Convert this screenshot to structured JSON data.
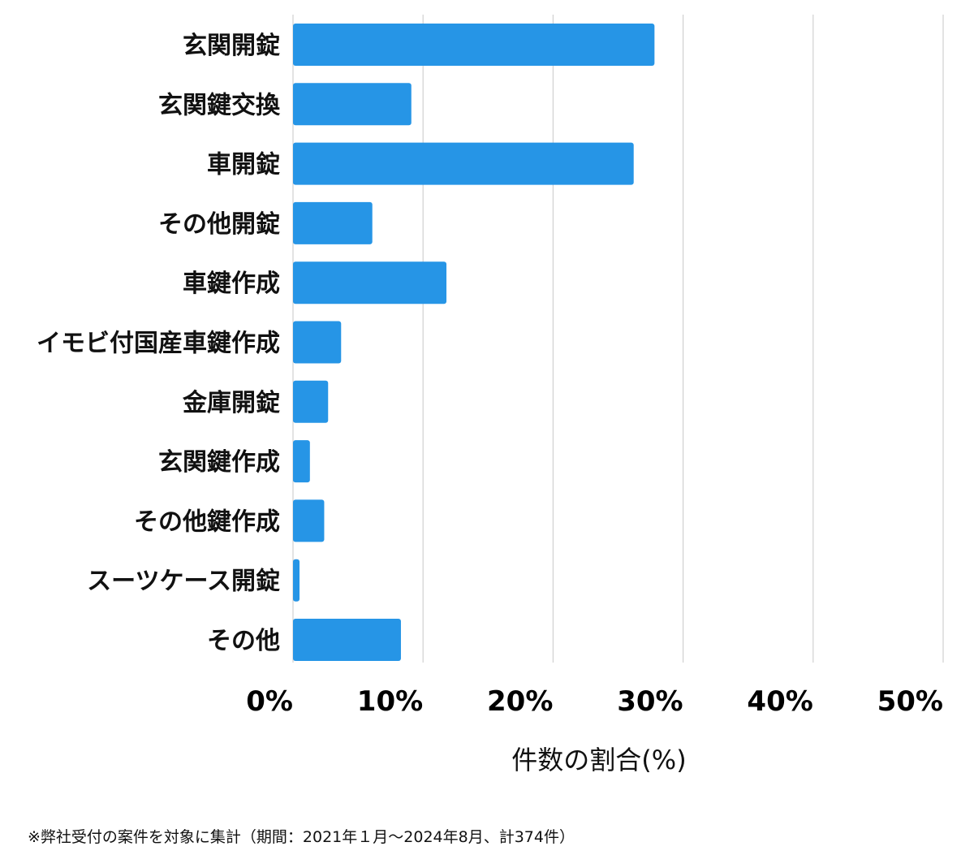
{
  "chart_data": {
    "type": "bar",
    "orientation": "horizontal",
    "categories": [
      "玄関開錠",
      "玄関鍵交換",
      "車開錠",
      "その他開錠",
      "車鍵作成",
      "イモビ付国産車鍵作成",
      "金庫開錠",
      "玄関鍵作成",
      "その他鍵作成",
      "スーツケース開錠",
      "その他"
    ],
    "values": [
      27.8,
      9.1,
      26.2,
      6.1,
      11.8,
      3.7,
      2.7,
      1.3,
      2.4,
      0.5,
      8.3
    ],
    "xlim": [
      0,
      50
    ],
    "xticks": [
      0,
      10,
      20,
      30,
      40,
      50
    ],
    "xtick_labels": [
      "0%",
      "10%",
      "20%",
      "30%",
      "40%",
      "50%"
    ],
    "xlabel": "件数の割合(%)",
    "ylabel": "",
    "title": "",
    "grid": "vertical",
    "legend": "none",
    "bar_color": "#2695e6",
    "grid_color": "#d0d0d0"
  },
  "footnote": "※弊社受付の案件を対象に集計（期間：2021年１月～2024年8月、計374件）"
}
